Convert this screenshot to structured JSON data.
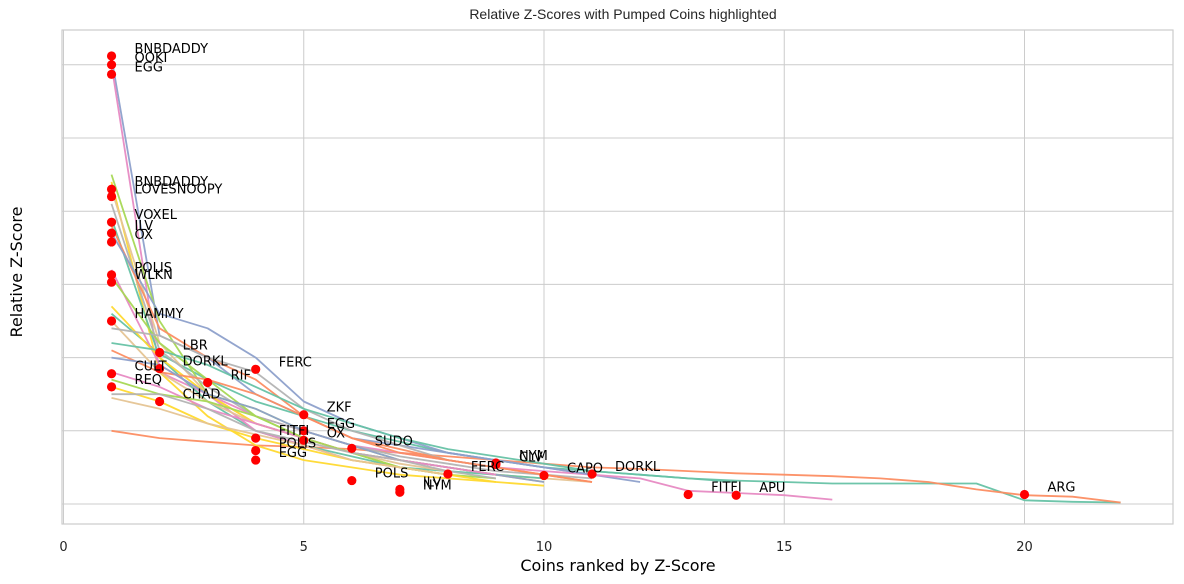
{
  "chart_data": {
    "type": "line",
    "title": "Relative Z-Scores with Pumped Coins highlighted",
    "xlabel": "Coins ranked by Z-Score",
    "ylabel": "Relative Z-Score",
    "xlim": [
      0,
      23
    ],
    "ylim": [
      0,
      6.6
    ],
    "x_ticks": [
      0,
      5,
      10,
      15,
      20
    ],
    "y_grid": [
      0,
      1,
      2,
      3,
      4,
      5,
      6
    ],
    "y_tick_labels_shown": false,
    "grid": true,
    "legend": "none",
    "highlight_color": "#ff0000",
    "series": [
      {
        "color": "#66c2a5",
        "x": [
          1,
          2,
          3,
          4,
          5,
          6,
          7,
          8,
          9,
          10,
          11,
          12,
          13,
          14,
          15,
          16,
          17,
          18,
          19,
          20,
          21,
          22
        ],
        "y": [
          2.6,
          2.05,
          1.7,
          1.4,
          1.2,
          1.0,
          0.85,
          0.7,
          0.6,
          0.5,
          0.45,
          0.4,
          0.35,
          0.32,
          0.3,
          0.28,
          0.28,
          0.28,
          0.28,
          0.05,
          0.03,
          0.02
        ]
      },
      {
        "color": "#fc8d62",
        "x": [
          1,
          2,
          3,
          4,
          5,
          6,
          7,
          8,
          9,
          10,
          11,
          12,
          13,
          14,
          15,
          16,
          17,
          18,
          19,
          20,
          21,
          22
        ],
        "y": [
          1.0,
          0.9,
          0.85,
          0.8,
          0.78,
          0.75,
          0.7,
          0.65,
          0.6,
          0.55,
          0.5,
          0.48,
          0.45,
          0.42,
          0.4,
          0.38,
          0.35,
          0.3,
          0.2,
          0.12,
          0.1,
          0.02
        ]
      },
      {
        "color": "#8da0cb",
        "x": [
          1,
          2,
          3,
          4,
          5,
          6,
          7,
          8,
          9,
          10,
          11,
          12
        ],
        "y": [
          6.1,
          2.3,
          2.0,
          1.5,
          1.2,
          0.9,
          0.8,
          0.7,
          0.6,
          0.5,
          0.4,
          0.3
        ]
      },
      {
        "color": "#e78ac3",
        "x": [
          1,
          2,
          3,
          4,
          5,
          6,
          7,
          8,
          9,
          10,
          11,
          12,
          13,
          14,
          15,
          16
        ],
        "y": [
          6.0,
          1.8,
          1.5,
          1.2,
          1.0,
          0.8,
          0.7,
          0.6,
          0.5,
          0.45,
          0.4,
          0.35,
          0.18,
          0.15,
          0.12,
          0.06
        ]
      },
      {
        "color": "#a6d854",
        "x": [
          1,
          2,
          3,
          4,
          5,
          6,
          7,
          8,
          9
        ],
        "y": [
          4.5,
          2.5,
          1.5,
          1.3,
          1.0,
          0.8,
          0.6,
          0.5,
          0.4
        ]
      },
      {
        "color": "#ffd92f",
        "x": [
          1,
          2,
          3,
          4,
          5,
          6,
          7,
          8,
          9,
          10
        ],
        "y": [
          4.4,
          1.8,
          1.2,
          0.8,
          0.6,
          0.5,
          0.4,
          0.35,
          0.3,
          0.25
        ]
      },
      {
        "color": "#e5c494",
        "x": [
          1,
          2,
          3,
          4,
          5,
          6,
          7,
          8,
          9,
          10,
          11
        ],
        "y": [
          4.3,
          2.2,
          1.5,
          1.1,
          0.9,
          0.7,
          0.6,
          0.5,
          0.4,
          0.35,
          0.3
        ]
      },
      {
        "color": "#b3b3b3",
        "x": [
          1,
          2,
          3,
          4,
          5,
          6,
          7,
          8,
          9,
          10,
          11
        ],
        "y": [
          4.1,
          2.1,
          1.6,
          1.2,
          1.0,
          0.8,
          0.65,
          0.55,
          0.45,
          0.4,
          0.35
        ]
      },
      {
        "color": "#66c2a5",
        "x": [
          1,
          2,
          3,
          4,
          5,
          6,
          7,
          8,
          9,
          10
        ],
        "y": [
          3.9,
          2.0,
          1.4,
          1.0,
          0.8,
          0.65,
          0.5,
          0.45,
          0.4,
          0.35
        ]
      },
      {
        "color": "#fc8d62",
        "x": [
          1,
          2,
          3,
          4,
          5,
          6,
          7,
          8,
          9,
          10,
          11
        ],
        "y": [
          3.8,
          2.4,
          2.0,
          1.7,
          1.2,
          0.9,
          0.7,
          0.6,
          0.5,
          0.4,
          0.3
        ]
      },
      {
        "color": "#8da0cb",
        "x": [
          1,
          2,
          3,
          4,
          5,
          6,
          7,
          8,
          9,
          10,
          11
        ],
        "y": [
          3.7,
          2.6,
          2.4,
          2.0,
          1.4,
          1.1,
          0.9,
          0.7,
          0.6,
          0.5,
          0.4
        ]
      },
      {
        "color": "#e78ac3",
        "x": [
          1,
          2,
          3,
          4,
          5,
          6,
          7,
          8
        ],
        "y": [
          3.2,
          1.9,
          1.5,
          1.0,
          0.8,
          0.6,
          0.5,
          0.4
        ]
      },
      {
        "color": "#a6d854",
        "x": [
          1,
          2,
          3,
          4,
          5,
          6,
          7,
          8,
          9
        ],
        "y": [
          3.1,
          2.2,
          1.7,
          1.2,
          0.9,
          0.7,
          0.5,
          0.4,
          0.35
        ]
      },
      {
        "color": "#ffd92f",
        "x": [
          1,
          2,
          3,
          4,
          5,
          6,
          7,
          8,
          9,
          10
        ],
        "y": [
          2.7,
          2.0,
          1.5,
          1.1,
          0.9,
          0.7,
          0.6,
          0.5,
          0.4,
          0.3
        ]
      },
      {
        "color": "#e5c494",
        "x": [
          1,
          2,
          3,
          4,
          5,
          6,
          7,
          8
        ],
        "y": [
          2.5,
          1.8,
          1.4,
          1.1,
          0.9,
          0.7,
          0.55,
          0.45
        ]
      },
      {
        "color": "#b3b3b3",
        "x": [
          1,
          2,
          3,
          4,
          5,
          6,
          7,
          8,
          9
        ],
        "y": [
          2.4,
          2.3,
          2.0,
          1.8,
          1.3,
          1.0,
          0.8,
          0.6,
          0.5
        ]
      },
      {
        "color": "#66c2a5",
        "x": [
          1,
          2,
          3,
          4,
          5,
          6,
          7,
          8,
          9,
          10,
          11,
          12,
          13,
          14
        ],
        "y": [
          2.2,
          2.1,
          1.9,
          1.6,
          1.3,
          1.1,
          0.9,
          0.75,
          0.65,
          0.55,
          0.45,
          0.4,
          0.35,
          0.3
        ]
      },
      {
        "color": "#fc8d62",
        "x": [
          1,
          2,
          3,
          4,
          5,
          6,
          7,
          8,
          9,
          10,
          11
        ],
        "y": [
          2.1,
          1.8,
          1.7,
          1.5,
          1.2,
          0.9,
          0.75,
          0.6,
          0.5,
          0.4,
          0.3
        ]
      },
      {
        "color": "#8da0cb",
        "x": [
          1,
          2,
          3,
          4,
          5,
          6,
          7,
          8,
          9,
          10
        ],
        "y": [
          2.0,
          1.9,
          1.5,
          1.3,
          1.0,
          0.8,
          0.6,
          0.5,
          0.4,
          0.3
        ]
      },
      {
        "color": "#e78ac3",
        "x": [
          1,
          2,
          3,
          4,
          5,
          6,
          7,
          8,
          9
        ],
        "y": [
          1.8,
          1.6,
          1.3,
          1.1,
          0.9,
          0.7,
          0.6,
          0.5,
          0.4
        ]
      },
      {
        "color": "#a6d854",
        "x": [
          1,
          2,
          3,
          4,
          5,
          6,
          7,
          8
        ],
        "y": [
          1.7,
          1.5,
          1.4,
          1.2,
          0.9,
          0.7,
          0.5,
          0.4
        ]
      },
      {
        "color": "#ffd92f",
        "x": [
          1,
          2,
          3,
          4,
          5,
          6,
          7,
          8,
          9
        ],
        "y": [
          1.6,
          1.4,
          1.1,
          0.9,
          0.75,
          0.6,
          0.5,
          0.4,
          0.3
        ]
      },
      {
        "color": "#b3b3b3",
        "x": [
          1,
          2,
          3,
          4,
          5,
          6,
          7,
          8,
          9
        ],
        "y": [
          1.5,
          1.5,
          1.3,
          1.0,
          0.85,
          0.7,
          0.6,
          0.45,
          0.35
        ]
      },
      {
        "color": "#e5c494",
        "x": [
          1,
          2,
          3,
          4,
          5,
          6,
          7,
          8
        ],
        "y": [
          1.45,
          1.3,
          1.1,
          0.95,
          0.8,
          0.6,
          0.5,
          0.4
        ]
      }
    ],
    "annotations": [
      {
        "label": "BNBDADDY",
        "x": 1,
        "y": 6.12
      },
      {
        "label": "OOKI",
        "x": 1,
        "y": 6.0
      },
      {
        "label": "EGG",
        "x": 1,
        "y": 5.87
      },
      {
        "label": "BNBDADDY",
        "x": 1,
        "y": 4.3
      },
      {
        "label": "LOVESNOOPY",
        "x": 1,
        "y": 4.2
      },
      {
        "label": "VOXEL",
        "x": 1,
        "y": 3.85
      },
      {
        "label": "ILV",
        "x": 1,
        "y": 3.7
      },
      {
        "label": "OX",
        "x": 1,
        "y": 3.58
      },
      {
        "label": "POLIS",
        "x": 1,
        "y": 3.13
      },
      {
        "label": "WLKN",
        "x": 1,
        "y": 3.03
      },
      {
        "label": "HAMMY",
        "x": 1,
        "y": 2.5
      },
      {
        "label": "LBR",
        "x": 2,
        "y": 2.07
      },
      {
        "label": "DORKL",
        "x": 2,
        "y": 1.85
      },
      {
        "label": "FERC",
        "x": 4,
        "y": 1.84
      },
      {
        "label": "CULT",
        "x": 1,
        "y": 1.78
      },
      {
        "label": "REQ",
        "x": 1,
        "y": 1.6
      },
      {
        "label": "RIF",
        "x": 3,
        "y": 1.66
      },
      {
        "label": "CHAD",
        "x": 2,
        "y": 1.4
      },
      {
        "label": "ZKF",
        "x": 5,
        "y": 1.22
      },
      {
        "label": "EGG",
        "x": 5,
        "y": 1.0
      },
      {
        "label": "OX",
        "x": 5,
        "y": 0.87
      },
      {
        "label": "FITFI",
        "x": 4,
        "y": 0.9
      },
      {
        "label": "POLIS",
        "x": 4,
        "y": 0.73
      },
      {
        "label": "EGG",
        "x": 4,
        "y": 0.6
      },
      {
        "label": "SUDO",
        "x": 6,
        "y": 0.76
      },
      {
        "label": "NYM",
        "x": 9,
        "y": 0.56
      },
      {
        "label": "FERC",
        "x": 8,
        "y": 0.41
      },
      {
        "label": "CLV",
        "x": 9,
        "y": 0.54
      },
      {
        "label": "CAPO",
        "x": 10,
        "y": 0.39
      },
      {
        "label": "DORKL",
        "x": 11,
        "y": 0.41
      },
      {
        "label": "POLS",
        "x": 6,
        "y": 0.32
      },
      {
        "label": "ILV",
        "x": 7,
        "y": 0.2
      },
      {
        "label": "NYM",
        "x": 7,
        "y": 0.16
      },
      {
        "label": "FITFI",
        "x": 13,
        "y": 0.13
      },
      {
        "label": "APU",
        "x": 14,
        "y": 0.12
      },
      {
        "label": "ARG",
        "x": 20,
        "y": 0.13
      }
    ]
  }
}
